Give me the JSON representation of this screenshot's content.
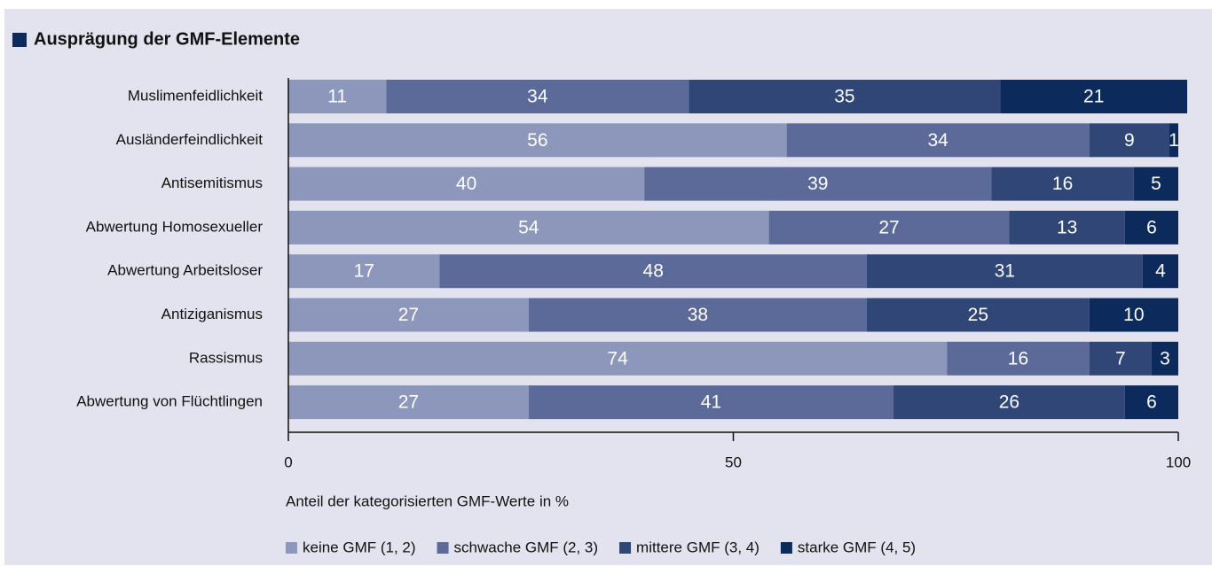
{
  "chart_data": {
    "type": "bar",
    "orientation": "horizontal",
    "stacked": true,
    "title": "Ausprägung der GMF-Elemente",
    "xlabel": "Anteil der kategorisierten GMF-Werte in %",
    "categories": [
      "Muslimenfeidlichkeit",
      "Ausländerfeindlichkeit",
      "Antisemitismus",
      "Abwertung Homosexueller",
      "Abwertung Arbeitsloser",
      "Antiziganismus",
      "Rassismus",
      "Abwertung von Flüchtlingen"
    ],
    "series": [
      {
        "name": "keine GMF (1, 2)",
        "color": "#8c97bb",
        "values": [
          11,
          56,
          40,
          54,
          17,
          27,
          74,
          27
        ]
      },
      {
        "name": "schwache GMF (2, 3)",
        "color": "#5b6a98",
        "values": [
          34,
          34,
          39,
          27,
          48,
          38,
          16,
          41
        ]
      },
      {
        "name": "mittere GMF (3, 4)",
        "color": "#2f4676",
        "values": [
          35,
          9,
          16,
          13,
          31,
          25,
          7,
          26
        ]
      },
      {
        "name": "starke GMF (4, 5)",
        "color": "#0c2a5b",
        "values": [
          21,
          1,
          5,
          6,
          4,
          10,
          3,
          6
        ]
      }
    ],
    "xlim": [
      0,
      100
    ],
    "xticks": [
      0,
      50,
      100
    ]
  }
}
